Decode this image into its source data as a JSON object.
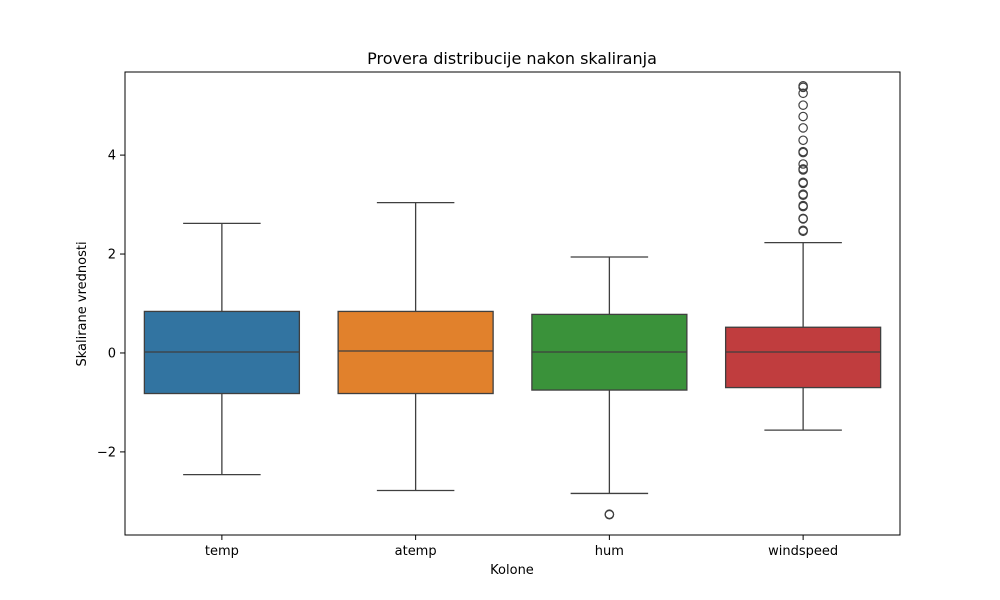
{
  "chart_data": {
    "type": "box",
    "title": "Provera distribucije nakon skaliranja",
    "xlabel": "Kolone",
    "ylabel": "Skalirane vrednosti",
    "ylim": [
      -3.68,
      5.68
    ],
    "yticks": [
      -2,
      0,
      2,
      4
    ],
    "ytick_labels": [
      "−2",
      "0",
      "2",
      "4"
    ],
    "grid": false,
    "legend": "none",
    "categories": [
      "temp",
      "atemp",
      "hum",
      "windspeed"
    ],
    "series": [
      {
        "category": "temp",
        "color": "#3274a1",
        "whisker_low": -2.46,
        "q1": -0.82,
        "median": 0.02,
        "q3": 0.84,
        "whisker_high": 2.62,
        "outliers": []
      },
      {
        "category": "atemp",
        "color": "#e1812c",
        "whisker_low": -2.78,
        "q1": -0.82,
        "median": 0.04,
        "q3": 0.84,
        "whisker_high": 3.04,
        "outliers": []
      },
      {
        "category": "hum",
        "color": "#3a923a",
        "whisker_low": -2.84,
        "q1": -0.75,
        "median": 0.02,
        "q3": 0.78,
        "whisker_high": 1.94,
        "outliers": [
          -3.26,
          -3.27
        ]
      },
      {
        "category": "windspeed",
        "color": "#c03d3e",
        "whisker_low": -1.56,
        "q1": -0.7,
        "median": 0.02,
        "q3": 0.52,
        "whisker_high": 2.23,
        "outliers": [
          2.46,
          2.48,
          2.71,
          2.72,
          2.96,
          2.98,
          3.19,
          3.21,
          3.43,
          3.45,
          3.7,
          3.72,
          3.82,
          4.05,
          4.07,
          4.3,
          4.55,
          4.78,
          5.01,
          5.25,
          5.37,
          5.4
        ]
      }
    ]
  }
}
